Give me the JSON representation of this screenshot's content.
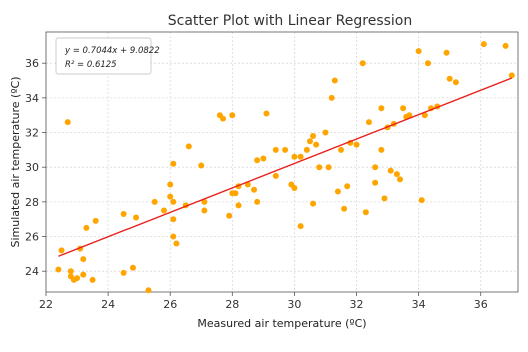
{
  "chart_data": {
    "type": "scatter",
    "title": "Scatter Plot with Linear Regression",
    "xlabel": "Measured air temperature (ºC)",
    "ylabel": "Simulated air temperature (ºC)",
    "xlim": [
      22,
      37.2
    ],
    "ylim": [
      22.8,
      37.8
    ],
    "xticks": [
      22,
      24,
      26,
      28,
      30,
      32,
      34,
      36
    ],
    "yticks": [
      24,
      26,
      28,
      30,
      32,
      34,
      36
    ],
    "grid": true,
    "points": [
      [
        22.4,
        24.1
      ],
      [
        22.5,
        25.2
      ],
      [
        22.7,
        32.6
      ],
      [
        22.8,
        24.0
      ],
      [
        22.8,
        23.7
      ],
      [
        22.9,
        23.5
      ],
      [
        23.0,
        23.6
      ],
      [
        23.1,
        25.3
      ],
      [
        23.2,
        24.7
      ],
      [
        23.2,
        23.8
      ],
      [
        23.3,
        26.5
      ],
      [
        23.5,
        23.5
      ],
      [
        23.6,
        26.9
      ],
      [
        24.5,
        27.3
      ],
      [
        24.5,
        23.9
      ],
      [
        24.8,
        24.2
      ],
      [
        24.9,
        27.1
      ],
      [
        25.3,
        22.9
      ],
      [
        25.5,
        28.0
      ],
      [
        25.8,
        27.5
      ],
      [
        26.0,
        29.0
      ],
      [
        26.0,
        28.3
      ],
      [
        26.1,
        30.2
      ],
      [
        26.1,
        27.0
      ],
      [
        26.1,
        28.0
      ],
      [
        26.1,
        26.0
      ],
      [
        26.2,
        25.6
      ],
      [
        26.5,
        27.8
      ],
      [
        26.6,
        31.2
      ],
      [
        27.0,
        30.1
      ],
      [
        27.1,
        28.0
      ],
      [
        27.1,
        27.5
      ],
      [
        27.6,
        33.0
      ],
      [
        27.7,
        32.8
      ],
      [
        27.9,
        27.2
      ],
      [
        28.0,
        33.0
      ],
      [
        28.0,
        28.5
      ],
      [
        28.1,
        28.5
      ],
      [
        28.2,
        28.9
      ],
      [
        28.2,
        27.8
      ],
      [
        28.5,
        29.0
      ],
      [
        28.7,
        28.7
      ],
      [
        28.8,
        28.0
      ],
      [
        28.8,
        30.4
      ],
      [
        29.0,
        30.5
      ],
      [
        29.1,
        33.1
      ],
      [
        29.4,
        29.5
      ],
      [
        29.4,
        31.0
      ],
      [
        29.7,
        31.0
      ],
      [
        29.9,
        29.0
      ],
      [
        30.0,
        30.6
      ],
      [
        30.0,
        28.8
      ],
      [
        30.2,
        30.6
      ],
      [
        30.2,
        26.6
      ],
      [
        30.4,
        31.0
      ],
      [
        30.5,
        31.5
      ],
      [
        30.6,
        31.8
      ],
      [
        30.6,
        27.9
      ],
      [
        30.7,
        31.3
      ],
      [
        30.8,
        30.0
      ],
      [
        31.0,
        32.0
      ],
      [
        31.1,
        30.0
      ],
      [
        31.2,
        34.0
      ],
      [
        31.3,
        35.0
      ],
      [
        31.4,
        28.6
      ],
      [
        31.5,
        31.0
      ],
      [
        31.6,
        27.6
      ],
      [
        31.7,
        28.9
      ],
      [
        31.8,
        31.4
      ],
      [
        32.0,
        31.3
      ],
      [
        32.2,
        36.0
      ],
      [
        32.3,
        27.4
      ],
      [
        32.4,
        32.6
      ],
      [
        32.6,
        29.1
      ],
      [
        32.6,
        30.0
      ],
      [
        32.8,
        31.0
      ],
      [
        32.8,
        33.4
      ],
      [
        32.9,
        28.2
      ],
      [
        33.0,
        32.3
      ],
      [
        33.1,
        29.8
      ],
      [
        33.2,
        32.5
      ],
      [
        33.3,
        29.6
      ],
      [
        33.4,
        29.3
      ],
      [
        33.5,
        33.4
      ],
      [
        33.6,
        32.9
      ],
      [
        33.7,
        33.0
      ],
      [
        34.0,
        36.7
      ],
      [
        34.1,
        28.1
      ],
      [
        34.2,
        33.0
      ],
      [
        34.3,
        36.0
      ],
      [
        34.4,
        33.4
      ],
      [
        34.6,
        33.5
      ],
      [
        34.9,
        36.6
      ],
      [
        35.0,
        35.1
      ],
      [
        35.2,
        34.9
      ],
      [
        36.1,
        37.1
      ],
      [
        36.8,
        37.0
      ],
      [
        37.0,
        35.3
      ]
    ],
    "regression": {
      "slope": 0.7044,
      "intercept": 9.0822,
      "equation": "y = 0.7044x + 9.0822",
      "r2": "R² = 0.6125"
    },
    "colors": {
      "points": "#FFA500",
      "line": "#E8221C",
      "grid": "#D9D9D9"
    }
  }
}
